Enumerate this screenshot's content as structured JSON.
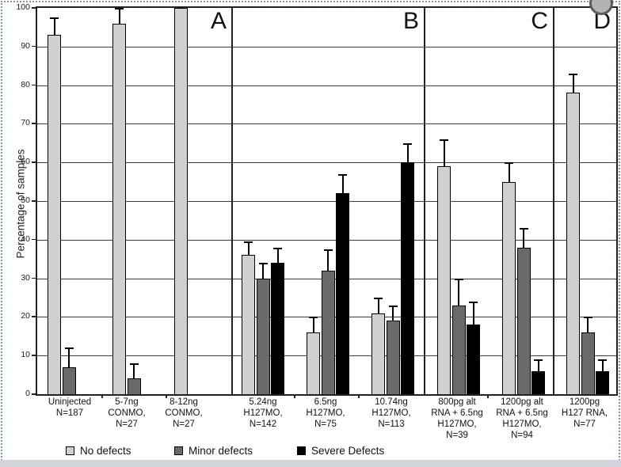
{
  "chart_data": {
    "type": "bar",
    "title": "",
    "xlabel": "",
    "ylabel": "Percentage of samples",
    "ylim": [
      0,
      100
    ],
    "yticks": [
      0,
      10,
      20,
      30,
      40,
      50,
      60,
      70,
      80,
      90,
      100
    ],
    "grid": true,
    "legend_position": "bottom",
    "categories": [
      "Uninjected\nN=187",
      "5-7ng\nCONMO,\nN=27",
      "8-12ng\nCONMO,\nN=27",
      "5.24ng\nH127MO,\nN=142",
      "6.5ng\nH127MO,\nN=75",
      "10.74ng\nH127MO,\nN=113",
      "800pg alt\nRNA + 6.5ng\nH127MO,\nN=39",
      "1200pg alt\nRNA + 6.5ng\nH127MO,\nN=94",
      "1200pg\nH127 RNA,\nN=77"
    ],
    "panels": [
      {
        "label": "A",
        "category_indexes": [
          0,
          1,
          2
        ]
      },
      {
        "label": "B",
        "category_indexes": [
          3,
          4,
          5
        ]
      },
      {
        "label": "C",
        "category_indexes": [
          6,
          7
        ]
      },
      {
        "label": "D",
        "category_indexes": [
          8
        ]
      }
    ],
    "series": [
      {
        "name": "No defects",
        "color": "#d0d0d0",
        "values": [
          93,
          96,
          100,
          36,
          16,
          21,
          59,
          55,
          78
        ],
        "upper_errors": [
          4.5,
          4,
          0,
          3.5,
          4,
          4,
          7,
          5,
          5
        ]
      },
      {
        "name": "Minor defects",
        "color": "#6a6a6a",
        "values": [
          7,
          4,
          null,
          30,
          32,
          19,
          23,
          38,
          16
        ],
        "upper_errors": [
          5,
          4,
          null,
          4,
          5.5,
          4,
          7,
          5,
          4
        ]
      },
      {
        "name": "Severe Defects",
        "color": "#000000",
        "values": [
          null,
          null,
          null,
          34,
          52,
          60,
          18,
          6,
          6
        ],
        "upper_errors": [
          null,
          null,
          null,
          4,
          5,
          5,
          6,
          3,
          3
        ]
      }
    ]
  }
}
